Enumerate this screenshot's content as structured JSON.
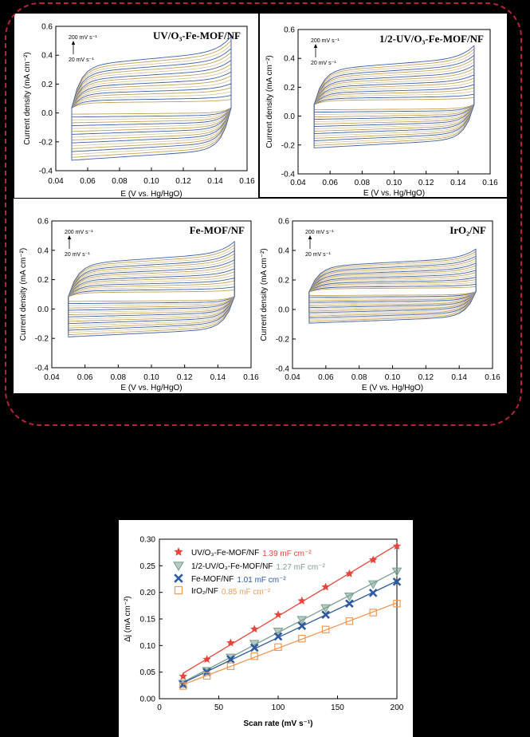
{
  "cv_panels": [
    {
      "id": "p1",
      "title": "UV/O₃-Fe-MOF/NF",
      "ylabel": "Current density (mA cm⁻²)",
      "xlabel": "E (V vs. Hg/HgO)",
      "ann_top": "200 mV s⁻¹",
      "ann_bottom": "20 mV s⁻¹",
      "xlim": [
        0.04,
        0.16
      ],
      "ylim": [
        -0.4,
        0.6
      ],
      "amp": 0.29,
      "offset": 0.035,
      "curves": 17,
      "xticks": [
        "0.04",
        "0.06",
        "0.08",
        "0.10",
        "0.12",
        "0.14",
        "0.16"
      ],
      "yticks": [
        "-0.4",
        "-0.2",
        "0.0",
        "0.2",
        "0.4",
        "0.6"
      ]
    },
    {
      "id": "p2",
      "title": "1/2-UV/O₃-Fe-MOF/NF",
      "ylabel": "Current density (mA cm⁻²)",
      "xlabel": "E (V vs. Hg/HgO)",
      "ann_top": "200 mV s⁻¹",
      "ann_bottom": "20 mV s⁻¹",
      "xlim": [
        0.04,
        0.16
      ],
      "ylim": [
        -0.4,
        0.6
      ],
      "amp": 0.24,
      "offset": 0.08,
      "curves": 17,
      "xticks": [
        "0.04",
        "0.06",
        "0.08",
        "0.10",
        "0.12",
        "0.14",
        "0.16"
      ],
      "yticks": [
        "-0.4",
        "-0.2",
        "0.0",
        "0.2",
        "0.4",
        "0.6"
      ]
    },
    {
      "id": "p3",
      "title": "Fe-MOF/NF",
      "ylabel": "Current density (mA cm⁻²)",
      "xlabel": "E (V vs. Hg/HgO)",
      "ann_top": "200 mV s⁻¹",
      "ann_bottom": "20 mV s⁻¹",
      "xlim": [
        0.04,
        0.16
      ],
      "ylim": [
        -0.4,
        0.6
      ],
      "amp": 0.22,
      "offset": 0.085,
      "curves": 17,
      "xticks": [
        "0.04",
        "0.06",
        "0.08",
        "0.10",
        "0.12",
        "0.14",
        "0.16"
      ],
      "yticks": [
        "-0.4",
        "-0.2",
        "0.0",
        "0.2",
        "0.4",
        "0.6"
      ]
    },
    {
      "id": "p4",
      "title": "IrO₂/NF",
      "ylabel": "Current density (mA cm⁻²)",
      "xlabel": "E (V vs. Hg/HgO)",
      "ann_top": "200 mV s⁻¹",
      "ann_bottom": "20 mV s⁻¹",
      "xlim": [
        0.04,
        0.16
      ],
      "ylim": [
        -0.4,
        0.6
      ],
      "amp": 0.17,
      "offset": 0.12,
      "curves": 17,
      "xticks": [
        "0.04",
        "0.06",
        "0.08",
        "0.10",
        "0.12",
        "0.14",
        "0.16"
      ],
      "yticks": [
        "-0.4",
        "-0.2",
        "0.0",
        "0.2",
        "0.4",
        "0.6"
      ]
    }
  ],
  "chart_data": {
    "type": "scatter",
    "xlabel": "Scan rate (mV s⁻¹)",
    "ylabel": "Δj (mA cm⁻²)",
    "xlim": [
      0,
      200
    ],
    "ylim": [
      0.0,
      0.3
    ],
    "xticks": [
      "0",
      "50",
      "100",
      "150",
      "200"
    ],
    "yticks": [
      "0.00",
      "0.05",
      "0.10",
      "0.15",
      "0.20",
      "0.25",
      "0.30"
    ],
    "x": [
      20,
      40,
      60,
      80,
      100,
      120,
      140,
      160,
      180,
      200
    ],
    "series": [
      {
        "name": "UV/O₃-Fe-MOF/NF",
        "value_label": "1.39 mF cm⁻²",
        "color": "#e8463c",
        "marker": "star",
        "values": [
          0.042,
          0.074,
          0.105,
          0.131,
          0.158,
          0.184,
          0.21,
          0.235,
          0.261,
          0.287
        ]
      },
      {
        "name": "1/2-UV/O₃-Fe-MOF/NF",
        "value_label": "1.27 mF cm⁻²",
        "color": "#7aa08f",
        "marker": "triangle-down",
        "values": [
          0.029,
          0.053,
          0.078,
          0.104,
          0.127,
          0.149,
          0.171,
          0.193,
          0.216,
          0.24
        ]
      },
      {
        "name": "Fe-MOF/NF",
        "value_label": "1.01 mF cm⁻²",
        "color": "#2e5a9e",
        "marker": "x",
        "values": [
          0.027,
          0.05,
          0.074,
          0.096,
          0.117,
          0.137,
          0.158,
          0.179,
          0.199,
          0.22
        ]
      },
      {
        "name": "IrO₂/NF",
        "value_label": "0.85 mF cm⁻²",
        "color": "#f29a55",
        "marker": "square",
        "values": [
          0.024,
          0.043,
          0.061,
          0.08,
          0.097,
          0.113,
          0.13,
          0.146,
          0.162,
          0.179
        ]
      }
    ]
  },
  "cv_colors": [
    "#c6a152",
    "#3e5fa8",
    "#d8c8a0"
  ]
}
